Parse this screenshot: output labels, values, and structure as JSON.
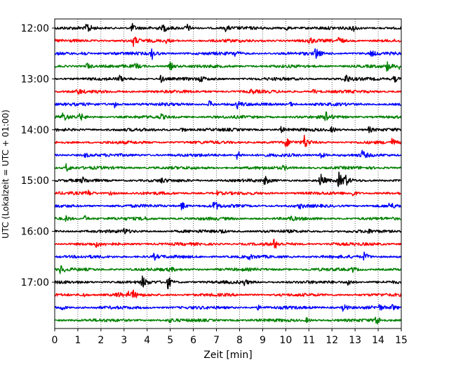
{
  "chart_data": {
    "type": "line",
    "title": "",
    "xlabel": "Zeit  [min]",
    "ylabel": "UTC (Lokalzeit = UTC + 01:00)",
    "xlim": [
      0,
      15
    ],
    "x_ticks": [
      0,
      1,
      2,
      3,
      4,
      5,
      6,
      7,
      8,
      9,
      10,
      11,
      12,
      13,
      14,
      15
    ],
    "x_tick_labels": [
      "0",
      "1",
      "2",
      "3",
      "4",
      "5",
      "6",
      "7",
      "8",
      "9",
      "10",
      "11",
      "12",
      "13",
      "14",
      "15"
    ],
    "y_tick_labels": [
      "12:00",
      "13:00",
      "14:00",
      "15:00",
      "16:00",
      "17:00"
    ],
    "grid": {
      "x": "dotted",
      "y": false
    },
    "trace_colors": [
      "#000000",
      "#ff0000",
      "#0000ff",
      "#008000"
    ],
    "traces_per_hour": 4,
    "trace_interval_min": 15,
    "start_time": "12:00",
    "end_time": "18:00",
    "events": [
      [
        [
          1.4,
          9,
          0
        ],
        [
          3.35,
          6,
          0
        ],
        [
          4.7,
          5,
          0
        ],
        [
          5.7,
          7,
          0
        ],
        [
          7.4,
          4,
          0
        ],
        [
          10.0,
          4,
          0
        ],
        [
          12.9,
          5,
          0
        ]
      ],
      [
        [
          3.4,
          8,
          0
        ],
        [
          4.8,
          3,
          0
        ],
        [
          11.0,
          5,
          0
        ],
        [
          12.3,
          6,
          0
        ]
      ],
      [
        [
          1.2,
          4,
          0
        ],
        [
          4.2,
          8,
          0
        ],
        [
          7.8,
          4,
          0
        ],
        [
          11.3,
          9,
          0
        ],
        [
          13.7,
          4,
          0
        ]
      ],
      [
        [
          1.4,
          5,
          0
        ],
        [
          3.5,
          4,
          0
        ],
        [
          5.0,
          6,
          0
        ],
        [
          14.4,
          7,
          0
        ],
        [
          14.9,
          4,
          0
        ]
      ],
      [
        [
          2.8,
          4,
          0
        ],
        [
          4.6,
          5,
          0
        ],
        [
          6.3,
          4,
          0
        ],
        [
          12.6,
          7,
          0
        ],
        [
          14.7,
          5,
          0
        ]
      ],
      [
        [
          1.0,
          4,
          0
        ],
        [
          8.5,
          3,
          0
        ],
        [
          11.2,
          3,
          0
        ]
      ],
      [
        [
          2.6,
          5,
          0
        ],
        [
          6.7,
          5,
          0
        ],
        [
          7.9,
          5,
          0
        ],
        [
          10.2,
          3,
          0
        ]
      ],
      [
        [
          0.35,
          6,
          0
        ],
        [
          1.1,
          5,
          0
        ],
        [
          4.6,
          3,
          0
        ],
        [
          11.75,
          8,
          0
        ]
      ],
      [
        [
          5.5,
          4,
          0
        ],
        [
          9.8,
          4,
          0
        ],
        [
          12.0,
          4,
          0
        ],
        [
          13.6,
          4,
          0
        ]
      ],
      [
        [
          10.0,
          6,
          0
        ],
        [
          10.8,
          10,
          0
        ],
        [
          14.6,
          5,
          0
        ]
      ],
      [
        [
          1.3,
          3,
          0
        ],
        [
          7.9,
          7,
          0
        ],
        [
          11.5,
          6,
          0
        ],
        [
          13.3,
          6,
          0
        ]
      ],
      [
        [
          0.5,
          6,
          0
        ],
        [
          9.9,
          3,
          0
        ]
      ],
      [
        [
          1.2,
          4,
          0
        ],
        [
          4.6,
          3,
          0
        ],
        [
          9.1,
          6,
          0
        ],
        [
          11.5,
          11,
          0
        ],
        [
          12.3,
          11,
          0
        ],
        [
          12.55,
          9,
          0
        ]
      ],
      [
        [
          1.4,
          5,
          0
        ],
        [
          2.4,
          3,
          0
        ],
        [
          7.0,
          3,
          0
        ],
        [
          12.9,
          4,
          0
        ]
      ],
      [
        [
          5.5,
          7,
          0
        ],
        [
          6.9,
          8,
          0
        ],
        [
          10.6,
          3,
          0
        ],
        [
          14.5,
          5,
          0
        ]
      ],
      [
        [
          0.5,
          4,
          0
        ],
        [
          1.3,
          4,
          0
        ],
        [
          3.8,
          3,
          0
        ],
        [
          10.2,
          3,
          0
        ]
      ],
      [
        [
          3.0,
          4,
          0
        ],
        [
          7.2,
          3,
          0
        ],
        [
          13.5,
          3,
          0
        ]
      ],
      [
        [
          1.8,
          3,
          0
        ],
        [
          9.5,
          7,
          0
        ],
        [
          12.0,
          3,
          0
        ]
      ],
      [
        [
          4.3,
          4,
          0
        ],
        [
          8.4,
          3,
          0
        ],
        [
          13.4,
          6,
          0
        ]
      ],
      [
        [
          0.25,
          6,
          0
        ],
        [
          5.0,
          3,
          0
        ],
        [
          12.9,
          4,
          0
        ]
      ],
      [
        [
          3.8,
          8,
          0
        ],
        [
          4.9,
          9,
          0
        ],
        [
          8.2,
          4,
          0
        ],
        [
          12.7,
          6,
          0
        ]
      ],
      [
        [
          1.2,
          4,
          0
        ],
        [
          2.7,
          4,
          0
        ],
        [
          3.4,
          5,
          0
        ],
        [
          3.2,
          4,
          0
        ]
      ],
      [
        [
          0.3,
          4,
          0
        ],
        [
          8.8,
          3,
          0
        ],
        [
          12.5,
          6,
          0
        ],
        [
          14.0,
          5,
          0
        ],
        [
          14.6,
          4,
          0
        ]
      ],
      [
        [
          5.0,
          3,
          0
        ],
        [
          10.9,
          3,
          0
        ],
        [
          13.9,
          8,
          0
        ]
      ]
    ]
  }
}
